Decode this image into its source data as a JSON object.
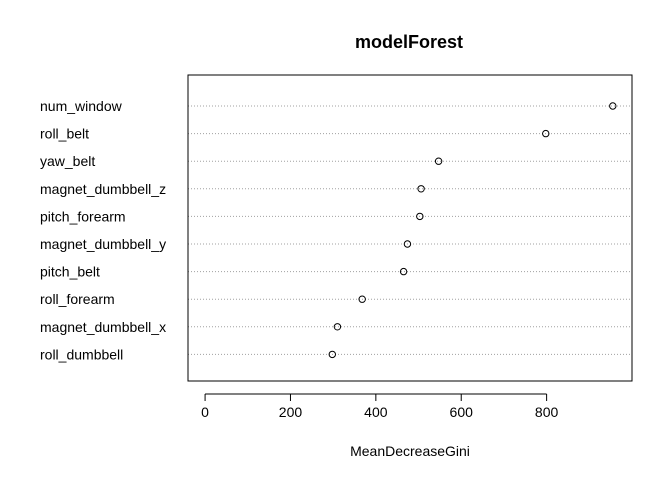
{
  "chart_data": {
    "type": "scatter",
    "title": "modelForest",
    "xlabel": "MeanDecreaseGini",
    "ylabel": "",
    "xlim": [
      -40,
      1000
    ],
    "xticks": [
      0,
      200,
      400,
      600,
      800
    ],
    "grid": "dotted horizontal",
    "categories": [
      "num_window",
      "roll_belt",
      "yaw_belt",
      "magnet_dumbbell_z",
      "pitch_forearm",
      "magnet_dumbbell_y",
      "pitch_belt",
      "roll_forearm",
      "magnet_dumbbell_x",
      "roll_dumbbell"
    ],
    "values": [
      955,
      798,
      547,
      506,
      503,
      474,
      465,
      368,
      310,
      298
    ]
  }
}
